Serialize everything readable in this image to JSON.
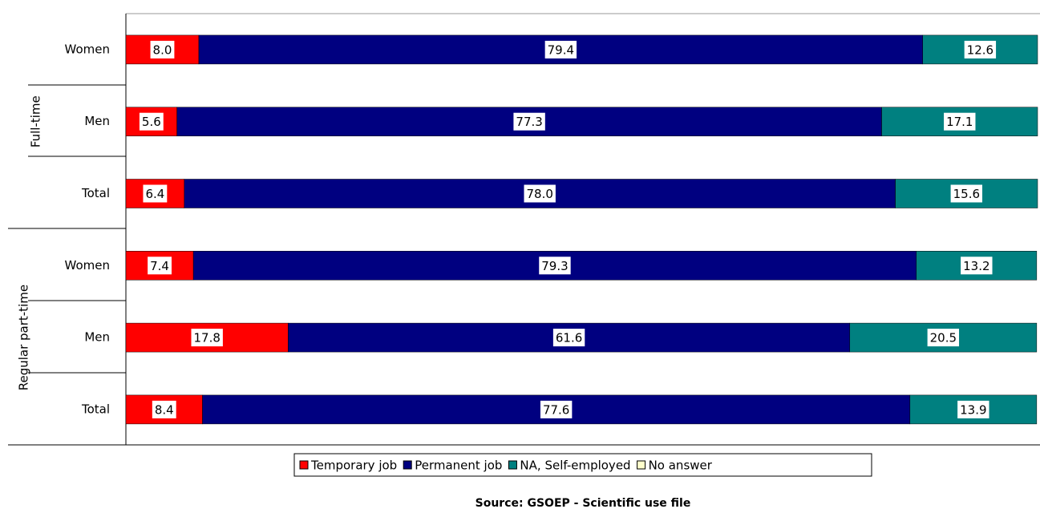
{
  "chart_data": {
    "type": "stacked-bar-horizontal",
    "groups": [
      {
        "label": "Full-time",
        "categories": [
          "Women",
          "Men",
          "Total"
        ]
      },
      {
        "label": "Regular part-time",
        "categories": [
          "Women",
          "Men",
          "Total"
        ]
      }
    ],
    "series": [
      {
        "name": "Temporary job",
        "color": "#ff0000",
        "values": [
          8.0,
          5.6,
          6.4,
          7.4,
          17.8,
          8.4
        ],
        "value_labels": [
          "8.0",
          "5.6",
          "6.4",
          "7.4",
          "17.8",
          "8.4"
        ]
      },
      {
        "name": "Permanent job",
        "color": "#000080",
        "values": [
          79.4,
          77.3,
          78.0,
          79.3,
          61.6,
          77.6
        ],
        "value_labels": [
          "79.4",
          "77.3",
          "78.0",
          "79.3",
          "61.6",
          "77.6"
        ]
      },
      {
        "name": "NA, Self-employed",
        "color": "#008080",
        "values": [
          12.6,
          17.1,
          15.6,
          13.2,
          20.5,
          13.9
        ],
        "value_labels": [
          "12.6",
          "17.1",
          "15.6",
          "13.2",
          "20.5",
          "13.9"
        ]
      },
      {
        "name": "No answer",
        "color": "#ffffcc",
        "values": [
          0,
          0,
          0,
          0,
          0,
          0
        ]
      }
    ],
    "xlim": [
      0,
      100
    ],
    "legend": "bottom",
    "source": "Source: GSOEP - Scientific use file"
  }
}
